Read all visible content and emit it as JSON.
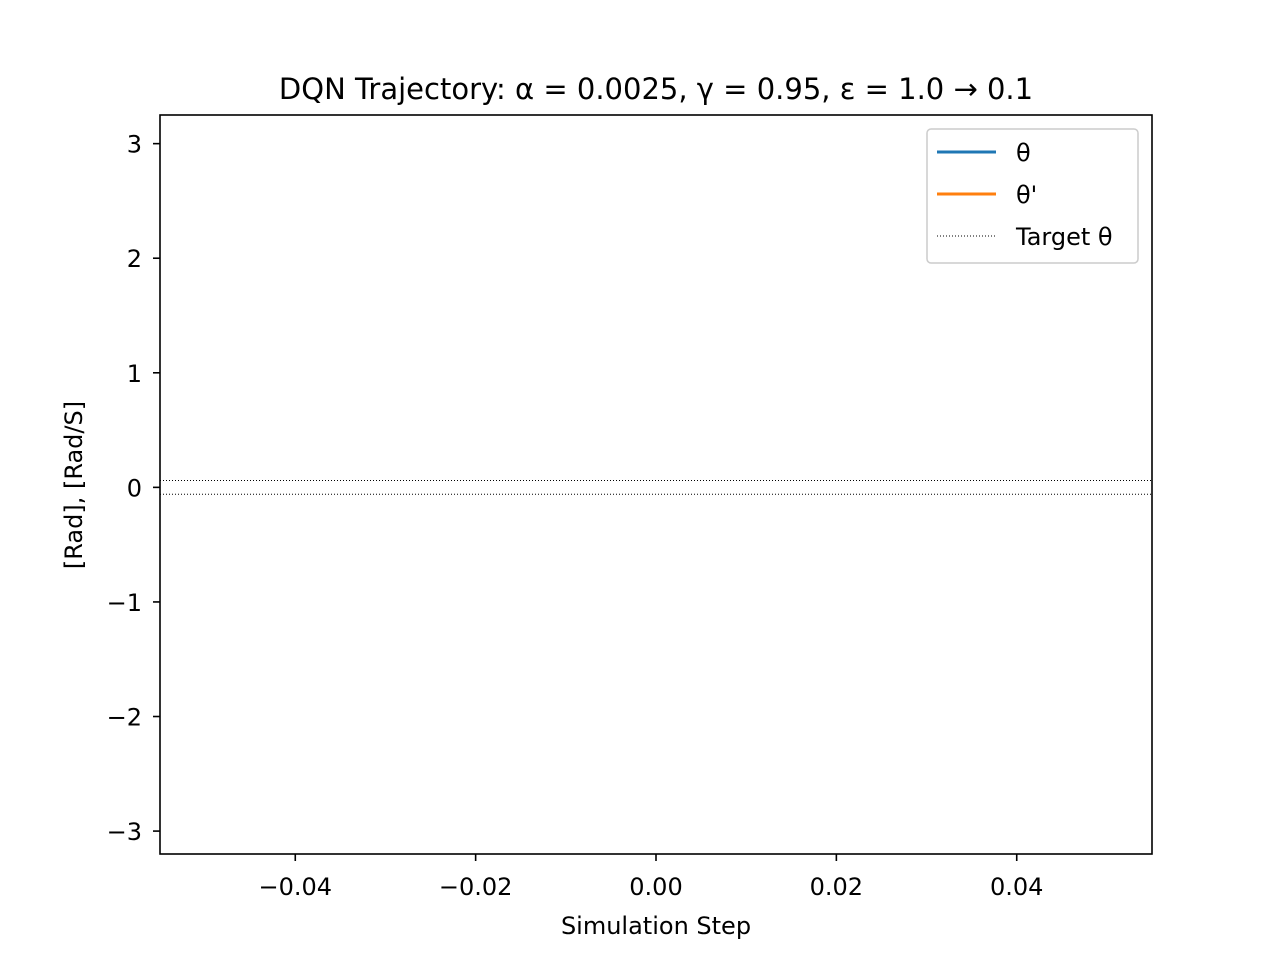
{
  "chart_data": {
    "type": "line",
    "title": "DQN Trajectory: α = 0.0025, γ = 0.95, ε = 1.0 → 0.1",
    "xlabel": "Simulation Step",
    "ylabel": "[Rad], [Rad/S]",
    "xlim": [
      -0.055,
      0.055
    ],
    "ylim": [
      -3.2,
      3.25
    ],
    "xticks": [
      -0.04,
      -0.02,
      0.0,
      0.02,
      0.04
    ],
    "xtick_labels": [
      "−0.04",
      "−0.02",
      "0.00",
      "0.02",
      "0.04"
    ],
    "yticks": [
      3,
      2,
      1,
      0,
      -1,
      -2,
      -3
    ],
    "ytick_labels": [
      "3",
      "2",
      "1",
      "0",
      "−1",
      "−2",
      "−3"
    ],
    "grid": false,
    "legend_position": "top-right",
    "series": [
      {
        "name": "θ",
        "color": "#1f77b4",
        "style": "solid",
        "x": [],
        "y": []
      },
      {
        "name": "θ'",
        "color": "#ff7f0e",
        "style": "solid",
        "x": [],
        "y": []
      },
      {
        "name": "Target θ",
        "color": "#000000",
        "style": "dotted",
        "hlines": [
          0.06,
          -0.06
        ]
      }
    ]
  }
}
